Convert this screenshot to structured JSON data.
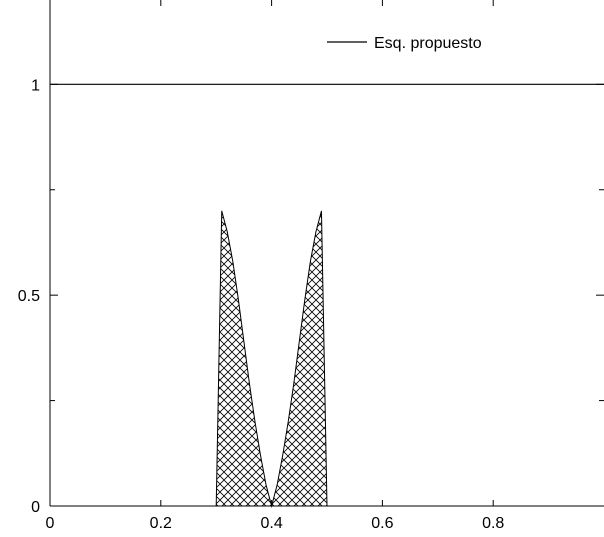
{
  "chart_data": {
    "type": "line",
    "title": "",
    "xlabel": "",
    "ylabel": "",
    "xlim": [
      0,
      1
    ],
    "ylim": [
      0,
      1.2
    ],
    "x_ticks": [
      0,
      0.2,
      0.4,
      0.6,
      0.8
    ],
    "x_tick_labels": [
      "0",
      "0.2",
      "0.4",
      "0.6",
      "0.8"
    ],
    "y_ticks": [
      0,
      0.5,
      1
    ],
    "y_tick_labels": [
      "0",
      "0.5",
      "1"
    ],
    "grid": false,
    "legend_position": "top-right",
    "series": [
      {
        "name": "Esq. propuesto",
        "style": "line",
        "color": "#000000",
        "x": [
          0,
          1
        ],
        "y": [
          1,
          1
        ]
      },
      {
        "name": "",
        "style": "hatched-area",
        "color": "#000000",
        "x": [
          0.3,
          0.31,
          0.32,
          0.33,
          0.34,
          0.35,
          0.36,
          0.37,
          0.38,
          0.39,
          0.4,
          0.41,
          0.42,
          0.43,
          0.44,
          0.45,
          0.46,
          0.47,
          0.48,
          0.49,
          0.5,
          0.51
        ],
        "y": [
          0,
          0.7,
          0.65,
          0.58,
          0.49,
          0.39,
          0.29,
          0.2,
          0.12,
          0.05,
          0,
          0.05,
          0.12,
          0.2,
          0.29,
          0.39,
          0.49,
          0.58,
          0.65,
          0.7,
          0,
          0
        ]
      }
    ]
  }
}
